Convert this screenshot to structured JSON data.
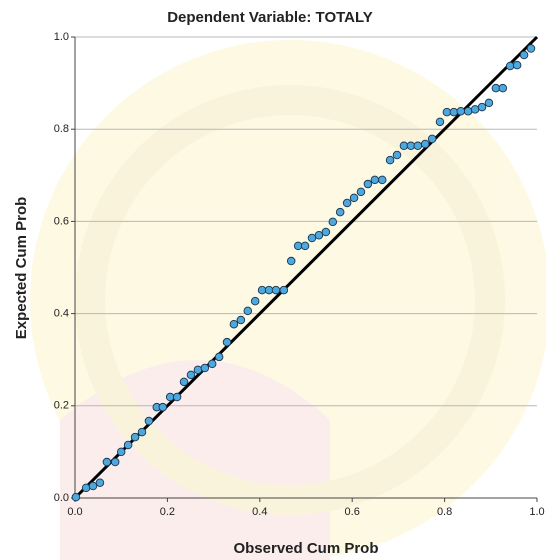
{
  "chart_data": {
    "type": "scatter",
    "title": "Dependent Variable: TOTALY",
    "x_label": "Observed Cum Prob",
    "y_label": "Expected Cum Prob",
    "xlim": [
      0,
      1
    ],
    "ylim": [
      0,
      1
    ],
    "xticks": [
      {
        "value": 0,
        "label": "0.0"
      },
      0.2,
      0.4,
      0.6,
      0.8,
      {
        "value": 1,
        "label": "1.0"
      }
    ],
    "yticks": [
      {
        "value": 0,
        "label": "0.0"
      },
      0.2,
      0.4,
      0.6,
      0.8,
      {
        "value": 1,
        "label": "1.0"
      }
    ],
    "grid": true,
    "reference_line_color": "#000000",
    "series": [
      {
        "color": "#4ea8dc",
        "x": [
          0.002,
          0.024,
          0.039,
          0.054,
          0.069,
          0.087,
          0.1,
          0.115,
          0.13,
          0.145,
          0.16,
          0.177,
          0.19,
          0.206,
          0.221,
          0.236,
          0.251,
          0.266,
          0.281,
          0.297,
          0.312,
          0.329,
          0.344,
          0.359,
          0.374,
          0.39,
          0.405,
          0.42,
          0.435,
          0.452,
          0.468,
          0.483,
          0.498,
          0.513,
          0.528,
          0.543,
          0.558,
          0.574,
          0.589,
          0.604,
          0.619,
          0.634,
          0.649,
          0.665,
          0.682,
          0.697,
          0.712,
          0.727,
          0.742,
          0.758,
          0.773,
          0.79,
          0.805,
          0.82,
          0.835,
          0.851,
          0.866,
          0.881,
          0.896,
          0.911,
          0.926,
          0.942,
          0.957,
          0.972,
          0.987
        ],
        "values": [
          0.002,
          0.022,
          0.026,
          0.033,
          0.078,
          0.078,
          0.1,
          0.115,
          0.132,
          0.143,
          0.167,
          0.197,
          0.197,
          0.219,
          0.219,
          0.252,
          0.267,
          0.278,
          0.282,
          0.291,
          0.306,
          0.338,
          0.377,
          0.386,
          0.406,
          0.427,
          0.451,
          0.451,
          0.451,
          0.451,
          0.514,
          0.547,
          0.547,
          0.564,
          0.57,
          0.577,
          0.599,
          0.62,
          0.64,
          0.651,
          0.664,
          0.681,
          0.69,
          0.69,
          0.733,
          0.744,
          0.764,
          0.764,
          0.764,
          0.768,
          0.779,
          0.816,
          0.837,
          0.837,
          0.839,
          0.839,
          0.843,
          0.848,
          0.857,
          0.889,
          0.889,
          0.937,
          0.939,
          0.961,
          0.975
        ]
      }
    ]
  }
}
